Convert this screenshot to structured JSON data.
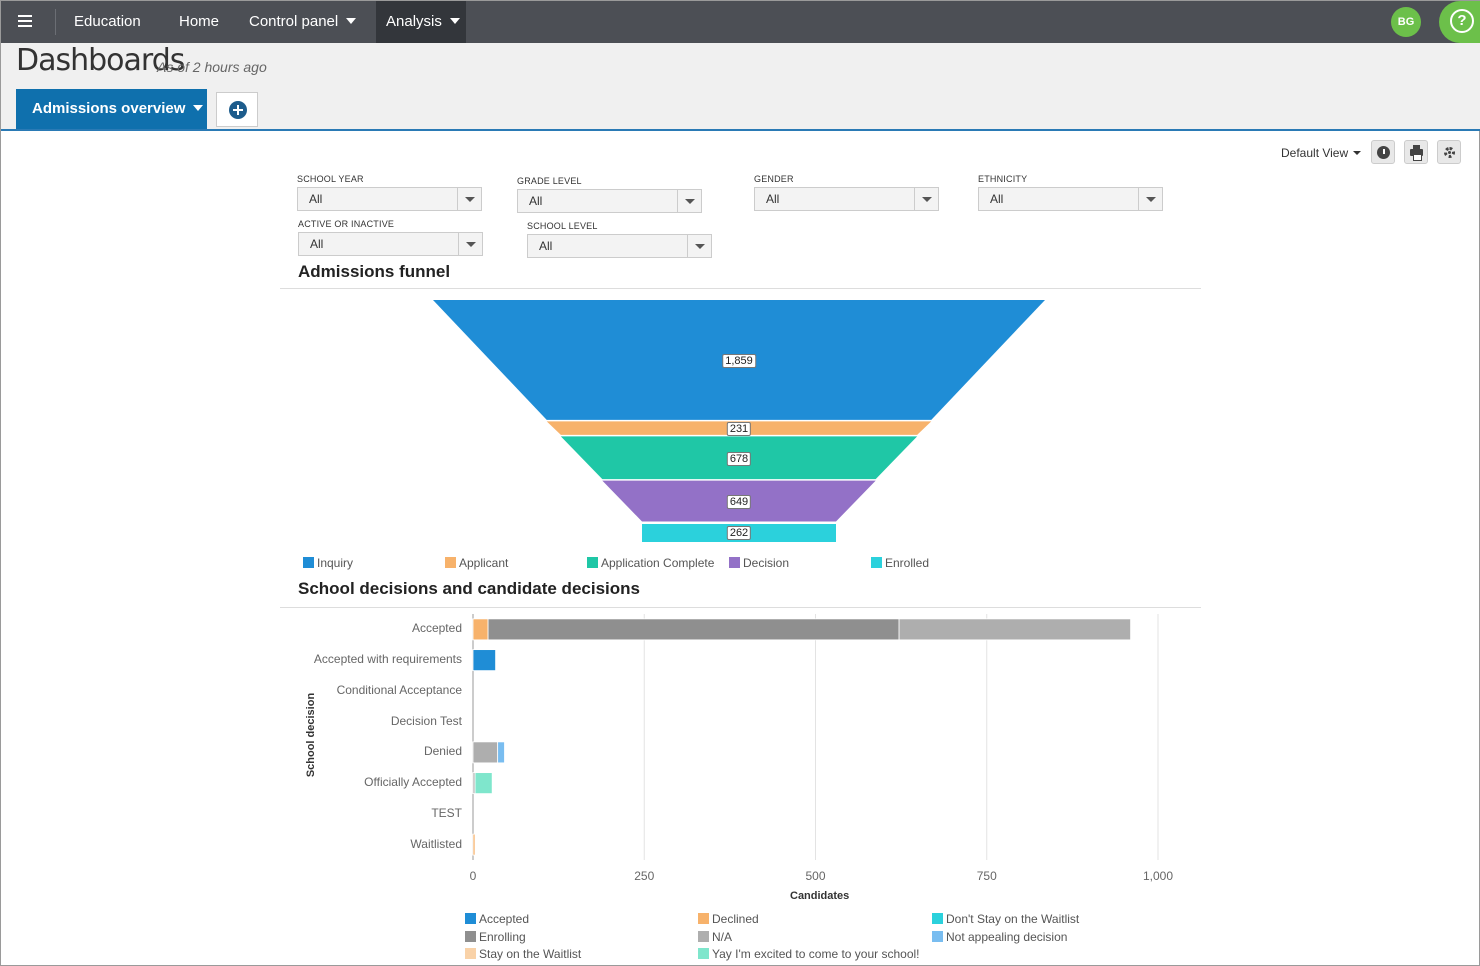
{
  "nav": {
    "brand": "Education",
    "items": [
      {
        "label": "Home"
      },
      {
        "label": "Control panel"
      },
      {
        "label": "Analysis"
      }
    ],
    "avatar_initials": "BG",
    "help_glyph": "?"
  },
  "header": {
    "title": "Dashboards",
    "subtitle": "As of 2 hours ago",
    "active_tab": "Admissions overview"
  },
  "toolbar": {
    "view_label": "Default View"
  },
  "filters": [
    {
      "label": "SCHOOL YEAR",
      "value": "All"
    },
    {
      "label": "GRADE LEVEL",
      "value": "All"
    },
    {
      "label": "GENDER",
      "value": "All"
    },
    {
      "label": "ETHNICITY",
      "value": "All"
    },
    {
      "label": "ACTIVE OR INACTIVE",
      "value": "All"
    },
    {
      "label": "SCHOOL LEVEL",
      "value": "All"
    }
  ],
  "sections": {
    "funnel_title": "Admissions funnel",
    "decisions_title": "School decisions and candidate decisions"
  },
  "chart_data": [
    {
      "type": "funnel",
      "title": "Admissions funnel",
      "categories": [
        "Inquiry",
        "Applicant",
        "Application Complete",
        "Decision",
        "Enrolled"
      ],
      "values": [
        1859,
        231,
        678,
        649,
        262
      ],
      "value_labels": [
        "1,859",
        "231",
        "678",
        "649",
        "262"
      ],
      "colors": [
        "#1f8dd6",
        "#f7b26b",
        "#1fc7a6",
        "#9371c7",
        "#2bd1dc"
      ]
    },
    {
      "type": "bar",
      "orientation": "horizontal",
      "stacked": true,
      "title": "School decisions and candidate decisions",
      "xlabel": "Candidates",
      "ylabel": "School decision",
      "xlim": [
        0,
        1000
      ],
      "x_ticks": [
        "0",
        "250",
        "500",
        "750",
        "1,000"
      ],
      "categories": [
        "Accepted",
        "Accepted with requirements",
        "Conditional Acceptance",
        "Decision Test",
        "Denied",
        "Officially Accepted",
        "TEST",
        "Waitlisted"
      ],
      "series": [
        {
          "name": "Accepted",
          "color": "#1f8dd6",
          "values": [
            0,
            33,
            0,
            0,
            0,
            0,
            0,
            0
          ]
        },
        {
          "name": "Declined",
          "color": "#f7b26b",
          "values": [
            22,
            0,
            0,
            0,
            0,
            0,
            0,
            3
          ]
        },
        {
          "name": "Don't Stay on the Waitlist",
          "color": "#2bd1dc",
          "values": [
            0,
            0,
            0,
            0,
            0,
            0,
            0,
            0
          ]
        },
        {
          "name": "Enrolling",
          "color": "#8f8f8f",
          "values": [
            600,
            0,
            0,
            0,
            0,
            0,
            0,
            0
          ]
        },
        {
          "name": "N/A",
          "color": "#aeaeae",
          "values": [
            338,
            0,
            0,
            0,
            36,
            3,
            0,
            0
          ]
        },
        {
          "name": "Not appealing decision",
          "color": "#79bdf0",
          "values": [
            0,
            0,
            0,
            0,
            10,
            0,
            0,
            0
          ]
        },
        {
          "name": "Stay on the Waitlist",
          "color": "#f9d2a8",
          "values": [
            0,
            0,
            0,
            0,
            0,
            0,
            0,
            0
          ]
        },
        {
          "name": "Yay I'm excited to come to your school!",
          "color": "#7fe6cc",
          "values": [
            0,
            0,
            0,
            0,
            0,
            25,
            0,
            0
          ]
        }
      ]
    }
  ]
}
